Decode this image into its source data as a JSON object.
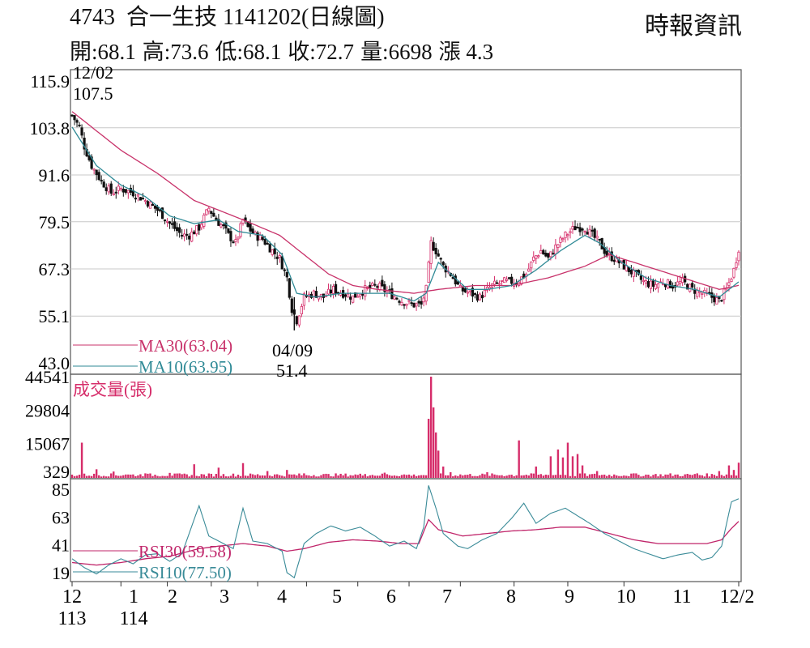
{
  "header": {
    "code": "4743",
    "name": "合一生技",
    "date": "1141202(日線圖)",
    "source": "時報資訊",
    "open": "開:68.1",
    "high": "高:73.6",
    "low": "低:68.1",
    "close": "收:72.7",
    "volume": "量:6698",
    "change": "漲 4.3"
  },
  "colors": {
    "candle_up": "#d62d6a",
    "candle_down": "#111111",
    "ma30": "#c8326a",
    "ma10": "#2f8a96",
    "volume": "#d62d6a",
    "rsi30": "#c0256a",
    "rsi10": "#3a8b98",
    "grid": "#c8c8c8"
  },
  "chart_data": [
    {
      "type": "candlestick",
      "panel": "price",
      "yticks": [
        "115.9",
        "103.8",
        "91.6",
        "79.5",
        "67.3",
        "55.1",
        "43.0"
      ],
      "ylim": [
        43.0,
        115.9
      ],
      "xticks": [
        {
          "label": "12",
          "sub": "113"
        },
        {
          "label": "1",
          "sub": "114"
        },
        {
          "label": "2",
          "sub": ""
        },
        {
          "label": "3",
          "sub": ""
        },
        {
          "label": "4",
          "sub": ""
        },
        {
          "label": "5",
          "sub": ""
        },
        {
          "label": "6",
          "sub": ""
        },
        {
          "label": "7",
          "sub": ""
        },
        {
          "label": "8",
          "sub": ""
        },
        {
          "label": "9",
          "sub": ""
        },
        {
          "label": "10",
          "sub": ""
        },
        {
          "label": "11",
          "sub": ""
        },
        {
          "label": "12/2",
          "sub": ""
        }
      ],
      "annotations": [
        {
          "date": "12/02",
          "value": "107.5"
        },
        {
          "date": "04/09",
          "value": "51.4"
        }
      ],
      "legend": [
        {
          "name": "MA30(63.04)",
          "key": "ma30"
        },
        {
          "name": "MA10(63.95)",
          "key": "ma10"
        }
      ],
      "close_path": [
        [
          0,
          107
        ],
        [
          3,
          104
        ],
        [
          5,
          99
        ],
        [
          8,
          94
        ],
        [
          12,
          90
        ],
        [
          16,
          87
        ],
        [
          20,
          88
        ],
        [
          25,
          87
        ],
        [
          30,
          85
        ],
        [
          36,
          82
        ],
        [
          40,
          79
        ],
        [
          45,
          76
        ],
        [
          48,
          76
        ],
        [
          52,
          78
        ],
        [
          56,
          83
        ],
        [
          59,
          80
        ],
        [
          62,
          78
        ],
        [
          64,
          76
        ],
        [
          67,
          74
        ],
        [
          70,
          80
        ],
        [
          72,
          78
        ],
        [
          75,
          76
        ],
        [
          78,
          75
        ],
        [
          82,
          72
        ],
        [
          85,
          70
        ],
        [
          88,
          65
        ],
        [
          90,
          57
        ],
        [
          92,
          54
        ],
        [
          95,
          60
        ],
        [
          99,
          61
        ],
        [
          103,
          60
        ],
        [
          107,
          62
        ],
        [
          111,
          61
        ],
        [
          115,
          60
        ],
        [
          120,
          62
        ],
        [
          125,
          63
        ],
        [
          130,
          61
        ],
        [
          135,
          59
        ],
        [
          140,
          58
        ],
        [
          143,
          58
        ],
        [
          145,
          62
        ],
        [
          147,
          74
        ],
        [
          149,
          72
        ],
        [
          152,
          68
        ],
        [
          155,
          66
        ],
        [
          159,
          62
        ],
        [
          163,
          61
        ],
        [
          167,
          60
        ],
        [
          172,
          63
        ],
        [
          177,
          64
        ],
        [
          182,
          64
        ],
        [
          186,
          66
        ],
        [
          189,
          70
        ],
        [
          192,
          72
        ],
        [
          195,
          70
        ],
        [
          198,
          73
        ],
        [
          202,
          76
        ],
        [
          206,
          78
        ],
        [
          210,
          78
        ],
        [
          213,
          76
        ],
        [
          216,
          74
        ],
        [
          219,
          71
        ],
        [
          222,
          70
        ],
        [
          226,
          68
        ],
        [
          230,
          66
        ],
        [
          234,
          64
        ],
        [
          238,
          63
        ],
        [
          242,
          64
        ],
        [
          246,
          63
        ],
        [
          250,
          64
        ],
        [
          254,
          62
        ],
        [
          258,
          61
        ],
        [
          262,
          60
        ],
        [
          265,
          59
        ],
        [
          268,
          62
        ],
        [
          271,
          67
        ],
        [
          273,
          72.7
        ]
      ],
      "ma10_path": [
        [
          0,
          104
        ],
        [
          10,
          94
        ],
        [
          20,
          89
        ],
        [
          30,
          86
        ],
        [
          40,
          81
        ],
        [
          50,
          79
        ],
        [
          60,
          80
        ],
        [
          68,
          77
        ],
        [
          78,
          76
        ],
        [
          86,
          71
        ],
        [
          92,
          61
        ],
        [
          100,
          60
        ],
        [
          110,
          61
        ],
        [
          120,
          61
        ],
        [
          130,
          61
        ],
        [
          140,
          59
        ],
        [
          145,
          61
        ],
        [
          150,
          69
        ],
        [
          155,
          66
        ],
        [
          162,
          62
        ],
        [
          170,
          62
        ],
        [
          180,
          63
        ],
        [
          190,
          67
        ],
        [
          200,
          72
        ],
        [
          210,
          76
        ],
        [
          216,
          74
        ],
        [
          225,
          69
        ],
        [
          235,
          65
        ],
        [
          245,
          63
        ],
        [
          255,
          62
        ],
        [
          265,
          60
        ],
        [
          273,
          63.95
        ]
      ],
      "ma30_path": [
        [
          0,
          108
        ],
        [
          20,
          98
        ],
        [
          35,
          92
        ],
        [
          50,
          85
        ],
        [
          70,
          80
        ],
        [
          85,
          76
        ],
        [
          95,
          71
        ],
        [
          105,
          66
        ],
        [
          115,
          63
        ],
        [
          125,
          62
        ],
        [
          140,
          61
        ],
        [
          150,
          62
        ],
        [
          165,
          63
        ],
        [
          180,
          63
        ],
        [
          195,
          65
        ],
        [
          210,
          68
        ],
        [
          220,
          71
        ],
        [
          230,
          69
        ],
        [
          240,
          67
        ],
        [
          255,
          64
        ],
        [
          265,
          62
        ],
        [
          273,
          63.04
        ]
      ]
    },
    {
      "type": "bar",
      "panel": "volume",
      "title": "成交量(張)",
      "yticks": [
        "44541",
        "29804",
        "15067",
        "329"
      ],
      "ylim": [
        0,
        44541
      ],
      "spikes": [
        [
          4,
          15500
        ],
        [
          10,
          3800
        ],
        [
          17,
          2800
        ],
        [
          22,
          1500
        ],
        [
          30,
          2000
        ],
        [
          40,
          2200
        ],
        [
          50,
          6000
        ],
        [
          60,
          4500
        ],
        [
          70,
          6500
        ],
        [
          80,
          3000
        ],
        [
          88,
          3500
        ],
        [
          95,
          2000
        ],
        [
          110,
          1800
        ],
        [
          120,
          1700
        ],
        [
          128,
          2300
        ],
        [
          140,
          1500
        ],
        [
          146,
          26000
        ],
        [
          147,
          44541
        ],
        [
          148,
          31000
        ],
        [
          149,
          20000
        ],
        [
          150,
          12000
        ],
        [
          152,
          5000
        ],
        [
          155,
          2500
        ],
        [
          170,
          2500
        ],
        [
          183,
          16500
        ],
        [
          190,
          5000
        ],
        [
          196,
          9500
        ],
        [
          199,
          12500
        ],
        [
          201,
          9000
        ],
        [
          203,
          15500
        ],
        [
          205,
          9500
        ],
        [
          207,
          10500
        ],
        [
          209,
          5500
        ],
        [
          215,
          3000
        ],
        [
          230,
          2000
        ],
        [
          245,
          2000
        ],
        [
          256,
          2000
        ],
        [
          265,
          3000
        ],
        [
          269,
          5500
        ],
        [
          271,
          3500
        ],
        [
          273,
          6698
        ]
      ]
    },
    {
      "type": "line",
      "panel": "rsi",
      "yticks": [
        "85",
        "63",
        "41",
        "19"
      ],
      "ylim": [
        10,
        92
      ],
      "legend": [
        {
          "name": "RSI30(59.58)",
          "key": "rsi30"
        },
        {
          "name": "RSI10(77.50)",
          "key": "rsi10"
        }
      ],
      "rsi10_path": [
        [
          0,
          30
        ],
        [
          5,
          23
        ],
        [
          10,
          18
        ],
        [
          15,
          25
        ],
        [
          20,
          30
        ],
        [
          25,
          26
        ],
        [
          30,
          33
        ],
        [
          35,
          34
        ],
        [
          40,
          28
        ],
        [
          45,
          34
        ],
        [
          52,
          72
        ],
        [
          56,
          48
        ],
        [
          60,
          44
        ],
        [
          66,
          38
        ],
        [
          70,
          70
        ],
        [
          74,
          44
        ],
        [
          80,
          42
        ],
        [
          86,
          36
        ],
        [
          88,
          19
        ],
        [
          91,
          15
        ],
        [
          95,
          42
        ],
        [
          100,
          50
        ],
        [
          106,
          56
        ],
        [
          112,
          52
        ],
        [
          118,
          55
        ],
        [
          124,
          48
        ],
        [
          130,
          40
        ],
        [
          136,
          44
        ],
        [
          141,
          38
        ],
        [
          144,
          55
        ],
        [
          146,
          88
        ],
        [
          149,
          70
        ],
        [
          152,
          50
        ],
        [
          158,
          40
        ],
        [
          162,
          38
        ],
        [
          168,
          45
        ],
        [
          174,
          50
        ],
        [
          180,
          62
        ],
        [
          185,
          74
        ],
        [
          190,
          58
        ],
        [
          196,
          66
        ],
        [
          202,
          70
        ],
        [
          207,
          64
        ],
        [
          212,
          58
        ],
        [
          218,
          50
        ],
        [
          224,
          44
        ],
        [
          230,
          38
        ],
        [
          236,
          34
        ],
        [
          242,
          30
        ],
        [
          248,
          33
        ],
        [
          254,
          35
        ],
        [
          258,
          29
        ],
        [
          262,
          31
        ],
        [
          266,
          40
        ],
        [
          270,
          75
        ],
        [
          273,
          77.5
        ]
      ],
      "rsi30_path": [
        [
          0,
          27
        ],
        [
          10,
          25
        ],
        [
          20,
          27
        ],
        [
          30,
          30
        ],
        [
          40,
          32
        ],
        [
          52,
          38
        ],
        [
          60,
          40
        ],
        [
          70,
          42
        ],
        [
          80,
          40
        ],
        [
          88,
          36
        ],
        [
          95,
          38
        ],
        [
          105,
          43
        ],
        [
          115,
          45
        ],
        [
          125,
          44
        ],
        [
          135,
          42
        ],
        [
          142,
          42
        ],
        [
          146,
          61
        ],
        [
          150,
          53
        ],
        [
          160,
          48
        ],
        [
          170,
          50
        ],
        [
          180,
          52
        ],
        [
          190,
          53
        ],
        [
          200,
          55
        ],
        [
          210,
          55
        ],
        [
          220,
          50
        ],
        [
          230,
          45
        ],
        [
          240,
          42
        ],
        [
          250,
          42
        ],
        [
          260,
          42
        ],
        [
          266,
          45
        ],
        [
          270,
          54
        ],
        [
          273,
          59.58
        ]
      ]
    }
  ]
}
